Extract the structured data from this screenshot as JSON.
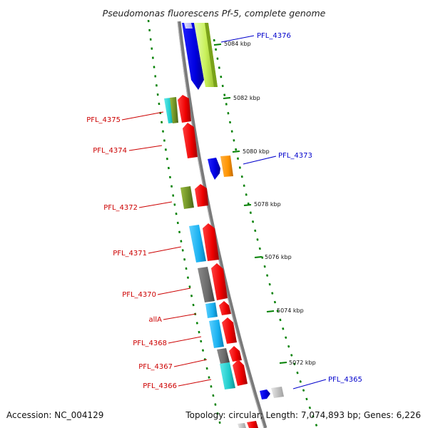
{
  "title": "Pseudomonas fluorescens Pf-5, complete genome",
  "footer": {
    "accession": "Accession: NC_004129",
    "summary": "Topology: circular; Length: 7,074,893 bp; Genes: 6,226"
  },
  "ticks": [
    {
      "label": "5084 kbp"
    },
    {
      "label": "5082 kbp"
    },
    {
      "label": "5080 kbp"
    },
    {
      "label": "5078 kbp"
    },
    {
      "label": "5076 kbp"
    },
    {
      "label": "5074 kbp"
    },
    {
      "label": "5072 kbp"
    }
  ],
  "gene_labels": [
    {
      "label": "PFL_4376",
      "strand": "forward",
      "color": "#0000cc"
    },
    {
      "label": "PFL_4375",
      "strand": "reverse",
      "color": "#cc0000"
    },
    {
      "label": "PFL_4374",
      "strand": "reverse",
      "color": "#cc0000"
    },
    {
      "label": "PFL_4373",
      "strand": "forward",
      "color": "#0000cc"
    },
    {
      "label": "PFL_4372",
      "strand": "reverse",
      "color": "#cc0000"
    },
    {
      "label": "PFL_4371",
      "strand": "reverse",
      "color": "#cc0000"
    },
    {
      "label": "PFL_4370",
      "strand": "reverse",
      "color": "#cc0000"
    },
    {
      "label": "allA",
      "strand": "reverse",
      "color": "#cc0000"
    },
    {
      "label": "PFL_4368",
      "strand": "reverse",
      "color": "#cc0000"
    },
    {
      "label": "PFL_4367",
      "strand": "reverse",
      "color": "#cc0000"
    },
    {
      "label": "PFL_4366",
      "strand": "reverse",
      "color": "#cc0000"
    },
    {
      "label": "PFL_4365",
      "strand": "forward",
      "color": "#0000cc"
    }
  ],
  "colors": {
    "forward_gene": "#0000ee",
    "reverse_gene": "#ee0000",
    "backbone": "#808080",
    "tick": "#008000"
  }
}
